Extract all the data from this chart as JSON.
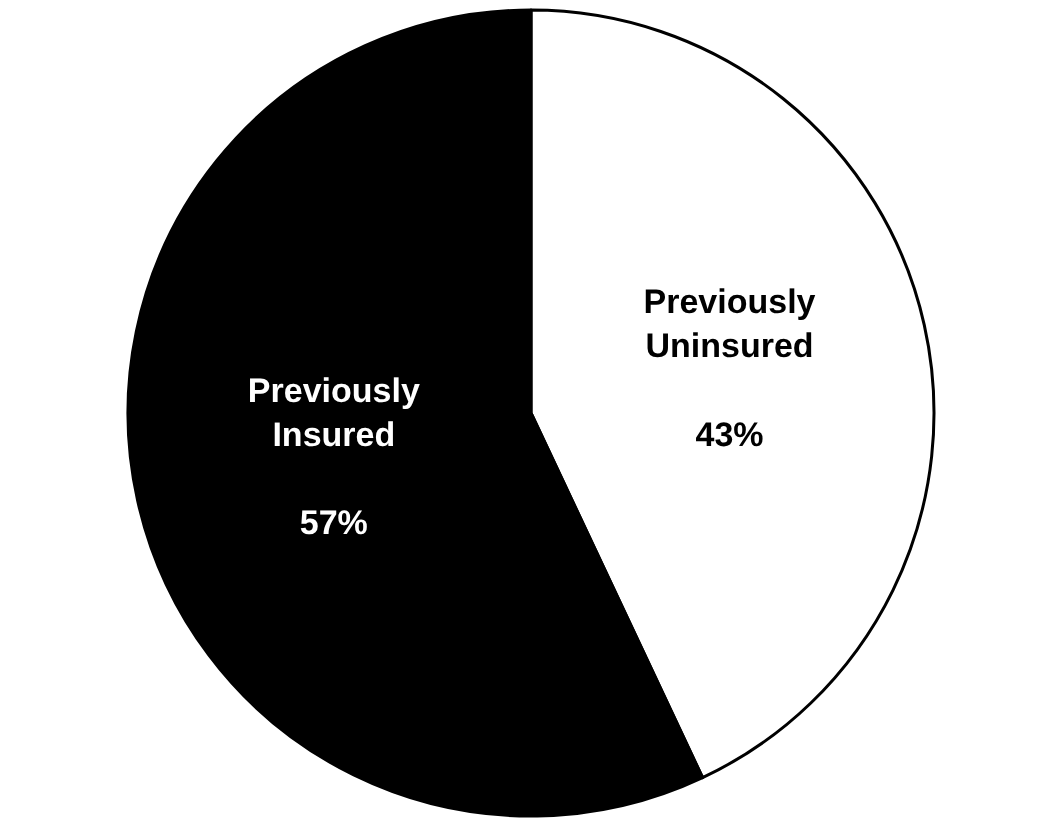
{
  "chart_data": {
    "type": "pie",
    "categories": [
      "Previously Uninsured",
      "Previously Insured"
    ],
    "values": [
      43,
      57
    ],
    "value_labels": [
      "43%",
      "57%"
    ],
    "colors": [
      "#ffffff",
      "#000000"
    ]
  }
}
